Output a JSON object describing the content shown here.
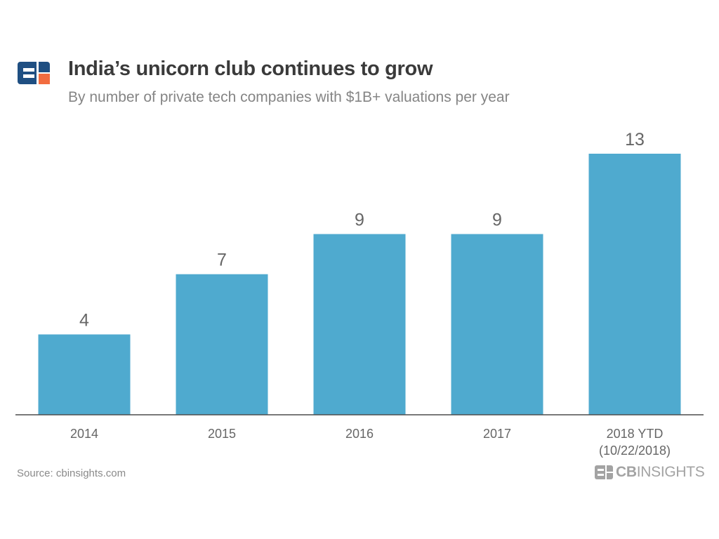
{
  "header": {
    "title": "India’s unicorn club continues to grow",
    "subtitle": "By number of private tech companies with $1B+ valuations per year"
  },
  "footer": {
    "source": "Source: cbinsights.com",
    "brand_bold": "CB",
    "brand_rest": "INSIGHTS"
  },
  "colors": {
    "bar": "#4faacf",
    "logo_blue": "#1f4f82",
    "logo_orange": "#f26c3f",
    "axis": "#4d4d4d",
    "label": "#666666"
  },
  "icons": {
    "header_logo": "cb-insights-logo-icon",
    "footer_logo": "cb-insights-brand-icon"
  },
  "chart_data": {
    "type": "bar",
    "categories": [
      "2014",
      "2015",
      "2016",
      "2017",
      "2018 YTD\n(10/22/2018)"
    ],
    "values": [
      4,
      7,
      9,
      9,
      13
    ],
    "data_labels": [
      "4",
      "7",
      "9",
      "9",
      "13"
    ],
    "title": "India’s unicorn club continues to grow",
    "subtitle": "By number of private tech companies with $1B+ valuations per year",
    "ylim": [
      0,
      13
    ],
    "grid": false,
    "legend": "none"
  }
}
